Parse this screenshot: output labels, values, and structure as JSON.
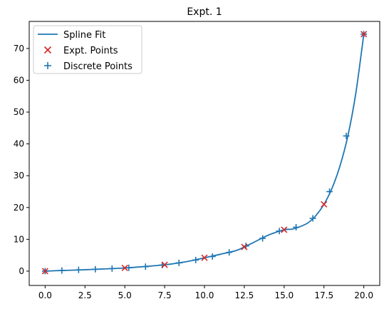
{
  "chart_data": {
    "type": "line",
    "title": "Expt. 1",
    "xlabel": "",
    "ylabel": "",
    "xlim": [
      -1.0,
      21.0
    ],
    "ylim": [
      -4.5,
      78.5
    ],
    "xticks": [
      0.0,
      2.5,
      5.0,
      7.5,
      10.0,
      12.5,
      15.0,
      17.5,
      20.0
    ],
    "xtick_labels": [
      "0.0",
      "2.5",
      "5.0",
      "7.5",
      "10.0",
      "12.5",
      "15.0",
      "17.5",
      "20.0"
    ],
    "yticks": [
      0,
      10,
      20,
      30,
      40,
      50,
      60,
      70
    ],
    "ytick_labels": [
      "0",
      "10",
      "20",
      "30",
      "40",
      "50",
      "60",
      "70"
    ],
    "grid": false,
    "legend_position": "top-left",
    "colors": {
      "spline": "#1f77b4",
      "expt": "#d62728",
      "discrete": "#1f77b4"
    },
    "series": [
      {
        "name": "Spline Fit",
        "type": "line",
        "x": [
          0.0,
          1.0,
          2.0,
          3.0,
          4.0,
          5.0,
          6.0,
          7.0,
          7.5,
          8.0,
          9.0,
          10.0,
          11.0,
          12.0,
          12.5,
          13.0,
          14.0,
          15.0,
          15.5,
          16.0,
          16.5,
          17.0,
          17.5,
          18.0,
          18.5,
          19.0,
          19.5,
          20.0
        ],
        "y": [
          0.0,
          0.2,
          0.35,
          0.55,
          0.75,
          1.0,
          1.35,
          1.75,
          2.0,
          2.3,
          3.1,
          4.2,
          5.3,
          6.5,
          7.6,
          8.8,
          11.3,
          13.0,
          13.2,
          14.0,
          15.2,
          17.5,
          21.0,
          26.0,
          33.0,
          42.5,
          56.0,
          74.5
        ]
      },
      {
        "name": "Expt. Points",
        "type": "scatter",
        "marker": "x",
        "x": [
          0.0,
          5.0,
          7.5,
          10.0,
          12.5,
          15.0,
          17.5,
          20.0
        ],
        "y": [
          0.0,
          1.0,
          2.0,
          4.2,
          7.6,
          13.0,
          21.0,
          74.5
        ]
      },
      {
        "name": "Discrete Points",
        "type": "scatter",
        "marker": "+",
        "x": [
          0.0,
          1.05,
          2.1,
          3.15,
          4.2,
          5.25,
          6.3,
          7.35,
          8.4,
          9.45,
          10.5,
          11.55,
          12.6,
          13.65,
          14.7,
          15.75,
          16.8,
          17.85,
          18.9,
          20.0
        ],
        "y": [
          0.0,
          0.2,
          0.4,
          0.6,
          0.8,
          1.05,
          1.4,
          1.9,
          2.6,
          3.5,
          4.6,
          5.9,
          7.9,
          10.3,
          12.6,
          13.8,
          16.6,
          25.0,
          42.5,
          74.5
        ]
      }
    ]
  }
}
